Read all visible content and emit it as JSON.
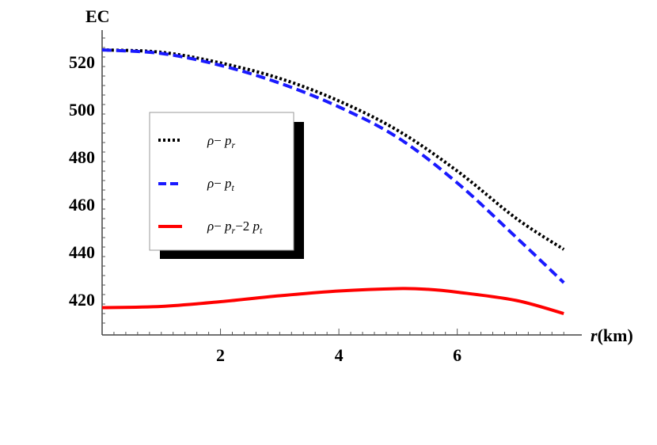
{
  "chart_data": {
    "type": "line",
    "ylabel": "EC",
    "xlabel_var": "r",
    "xlabel_unit": "(km)",
    "xlim": [
      0,
      7.85
    ],
    "ylim": [
      405,
      531
    ],
    "x_ticks": [
      2,
      4,
      6
    ],
    "y_ticks": [
      420,
      440,
      460,
      480,
      500,
      520
    ],
    "legend_position": "upper-left",
    "series": [
      {
        "name": "ρ−p_r",
        "color": "#000000",
        "dash": "dotted",
        "x": [
          0,
          1,
          2,
          3,
          4,
          5,
          6,
          7,
          7.8
        ],
        "y": [
          525,
          524,
          519.5,
          513,
          503.5,
          491,
          474,
          454,
          441
        ]
      },
      {
        "name": "ρ−p_t",
        "color": "#1a1aff",
        "dash": "dashed",
        "x": [
          0,
          1,
          2,
          3,
          4,
          5,
          6,
          7,
          7.8
        ],
        "y": [
          525,
          523.5,
          518.5,
          511,
          501,
          488,
          469,
          446,
          427
        ]
      },
      {
        "name": "ρ−p_r−2p_t",
        "color": "#ff0000",
        "dash": "solid",
        "x": [
          0,
          1,
          2,
          3,
          4,
          5,
          5.5,
          6,
          7,
          7.8
        ],
        "y": [
          416.5,
          417,
          419,
          421.5,
          423.5,
          424.5,
          424.2,
          423,
          419.5,
          414
        ]
      }
    ]
  }
}
